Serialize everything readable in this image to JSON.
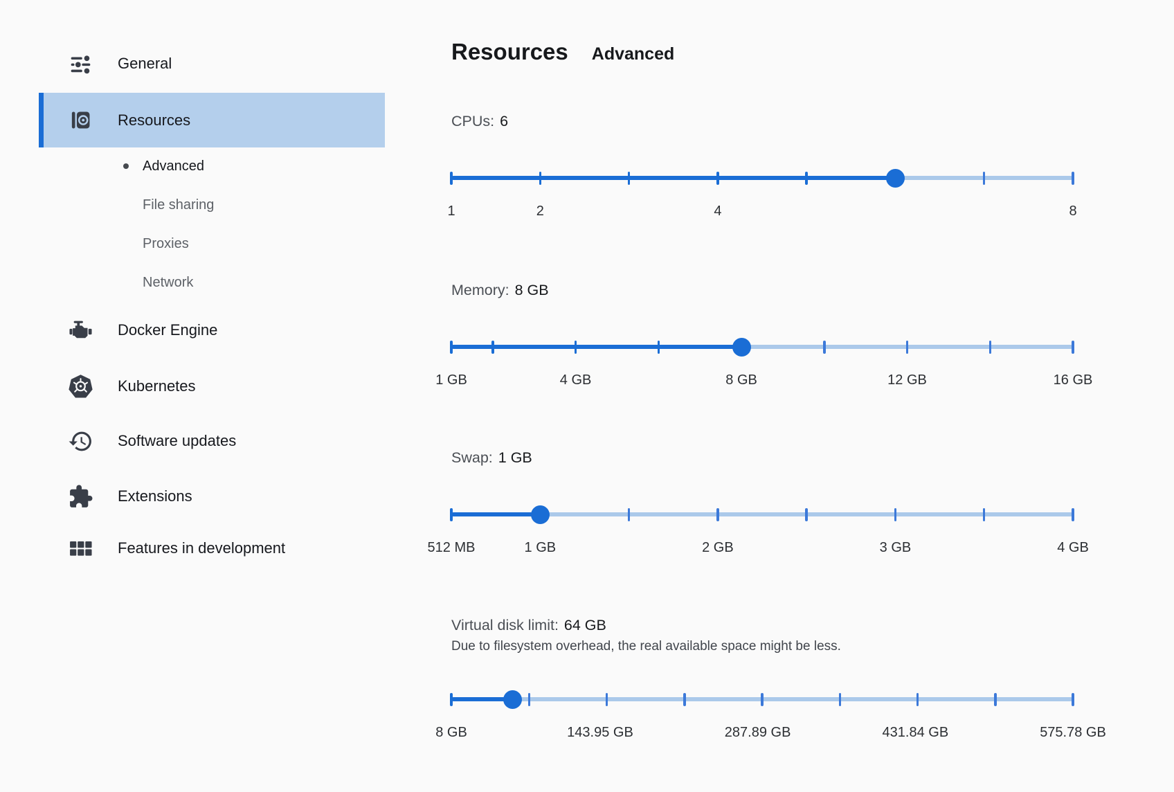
{
  "header": {
    "title": "Resources",
    "subtitle": "Advanced"
  },
  "colors": {
    "accent_blue": "#1a6dd5",
    "track_light": "#abc9ea",
    "tick_medium": "#3c79d9",
    "selected_highlight": "#b4cfec",
    "background": "#fafafa",
    "icon_slate": "#393e48"
  },
  "sidebar": {
    "items": [
      {
        "label": "General",
        "icon": "tune-icon"
      },
      {
        "label": "Resources",
        "icon": "resources-icon",
        "selected": true
      },
      {
        "label": "Docker Engine",
        "icon": "engine-icon"
      },
      {
        "label": "Kubernetes",
        "icon": "kubernetes-icon"
      },
      {
        "label": "Software updates",
        "icon": "history-icon"
      },
      {
        "label": "Extensions",
        "icon": "puzzle-icon"
      },
      {
        "label": "Features in development",
        "icon": "grid-icon"
      }
    ],
    "resources_children": [
      {
        "label": "Advanced",
        "active": true
      },
      {
        "label": "File sharing"
      },
      {
        "label": "Proxies"
      },
      {
        "label": "Network"
      }
    ]
  },
  "sliders": [
    {
      "id": "cpus",
      "label": "CPUs:",
      "value": "6",
      "fill_pct": 71.43,
      "ticks": [
        0,
        14.29,
        28.57,
        42.86,
        57.14,
        71.43,
        85.71,
        100
      ],
      "tick_labels": [
        {
          "text": "1",
          "pct": 0
        },
        {
          "text": "2",
          "pct": 14.29
        },
        {
          "text": "4",
          "pct": 42.86
        },
        {
          "text": "8",
          "pct": 100
        }
      ]
    },
    {
      "id": "memory",
      "label": "Memory:",
      "value": "8 GB",
      "fill_pct": 46.67,
      "ticks": [
        0,
        6.67,
        20,
        33.33,
        46.67,
        60,
        73.33,
        86.67,
        100
      ],
      "tick_labels": [
        {
          "text": "1 GB",
          "pct": 0
        },
        {
          "text": "4 GB",
          "pct": 20
        },
        {
          "text": "8 GB",
          "pct": 46.67
        },
        {
          "text": "12 GB",
          "pct": 73.33
        },
        {
          "text": "16 GB",
          "pct": 100
        }
      ]
    },
    {
      "id": "swap",
      "label": "Swap:",
      "value": "1 GB",
      "fill_pct": 14.29,
      "ticks": [
        0,
        14.29,
        28.57,
        42.86,
        57.14,
        71.43,
        85.71,
        100
      ],
      "tick_labels": [
        {
          "text": "512 MB",
          "pct": 0
        },
        {
          "text": "1 GB",
          "pct": 14.29
        },
        {
          "text": "2 GB",
          "pct": 42.86
        },
        {
          "text": "3 GB",
          "pct": 71.43
        },
        {
          "text": "4 GB",
          "pct": 100
        }
      ]
    },
    {
      "id": "disk",
      "label": "Virtual disk limit:",
      "value": "64 GB",
      "description": "Due to filesystem overhead, the real available space might be less.",
      "fill_pct": 9.86,
      "ticks": [
        0,
        12.5,
        25,
        37.5,
        50,
        62.5,
        75,
        87.5,
        100
      ],
      "tick_labels": [
        {
          "text": "8 GB",
          "pct": 0
        },
        {
          "text": "143.95 GB",
          "pct": 23.94
        },
        {
          "text": "287.89 GB",
          "pct": 49.29
        },
        {
          "text": "431.84 GB",
          "pct": 74.65
        },
        {
          "text": "575.78 GB",
          "pct": 100
        }
      ]
    }
  ]
}
